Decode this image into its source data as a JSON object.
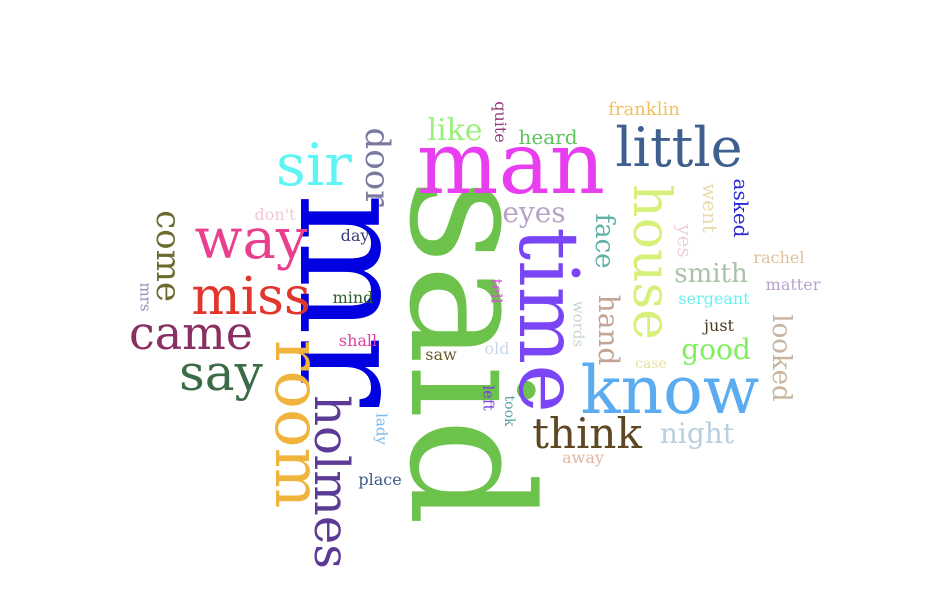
{
  "words": [
    {
      "text": "said",
      "color": "#6cc24a"
    },
    {
      "text": "mr",
      "color": "#0000e0"
    },
    {
      "text": "man",
      "color": "#e83ef0"
    },
    {
      "text": "time",
      "color": "#7a45f5"
    },
    {
      "text": "know",
      "color": "#5aabf0"
    },
    {
      "text": "room",
      "color": "#f0b33c"
    },
    {
      "text": "little",
      "color": "#3f5f8f"
    },
    {
      "text": "house",
      "color": "#d6f07a"
    },
    {
      "text": "holmes",
      "color": "#5c3b96"
    },
    {
      "text": "way",
      "color": "#e8408f"
    },
    {
      "text": "miss",
      "color": "#e0362d"
    },
    {
      "text": "came",
      "color": "#8a2f62"
    },
    {
      "text": "say",
      "color": "#3b6b47"
    },
    {
      "text": "think",
      "color": "#5e4823"
    },
    {
      "text": "sir",
      "color": "#5ff5f5"
    },
    {
      "text": "come",
      "color": "#6b6b2f"
    },
    {
      "text": "door",
      "color": "#7a7aa0"
    },
    {
      "text": "hand",
      "color": "#c4a494"
    },
    {
      "text": "face",
      "color": "#5fb0a6"
    },
    {
      "text": "night",
      "color": "#b8cfdf"
    },
    {
      "text": "good",
      "color": "#7df05a"
    },
    {
      "text": "looked",
      "color": "#c8b49f"
    },
    {
      "text": "eyes",
      "color": "#b8a2c8"
    },
    {
      "text": "like",
      "color": "#9af07a"
    },
    {
      "text": "smith",
      "color": "#a8c2a8"
    },
    {
      "text": "went",
      "color": "#eadbb0"
    },
    {
      "text": "asked",
      "color": "#2a2ad0"
    },
    {
      "text": "heard",
      "color": "#5cc25c"
    },
    {
      "text": "yes",
      "color": "#f0cfe0"
    },
    {
      "text": "franklin",
      "color": "#f0c25a"
    },
    {
      "text": "sergeant",
      "color": "#6af0f0"
    },
    {
      "text": "matter",
      "color": "#b8a2d0"
    },
    {
      "text": "rachel",
      "color": "#e0c09a"
    },
    {
      "text": "just",
      "color": "#4a3a1a"
    },
    {
      "text": "quite",
      "color": "#9a3a7a"
    },
    {
      "text": "don't",
      "color": "#f0c8d0"
    },
    {
      "text": "day",
      "color": "#3a3a7a"
    },
    {
      "text": "mind",
      "color": "#2f5f2f"
    },
    {
      "text": "shall",
      "color": "#e03f9f"
    },
    {
      "text": "saw",
      "color": "#6b5a2a"
    },
    {
      "text": "old",
      "color": "#c8d8ea"
    },
    {
      "text": "tell",
      "color": "#e04ae0"
    },
    {
      "text": "words",
      "color": "#c8d8c8"
    },
    {
      "text": "case",
      "color": "#e8e0a0"
    },
    {
      "text": "left",
      "color": "#7a3ae0"
    },
    {
      "text": "took",
      "color": "#5aa0a0"
    },
    {
      "text": "lady",
      "color": "#7ab8f0"
    },
    {
      "text": "place",
      "color": "#3a5a8a"
    },
    {
      "text": "away",
      "color": "#e0b8a0"
    },
    {
      "text": "mrs",
      "color": "#9a8ab8"
    }
  ]
}
